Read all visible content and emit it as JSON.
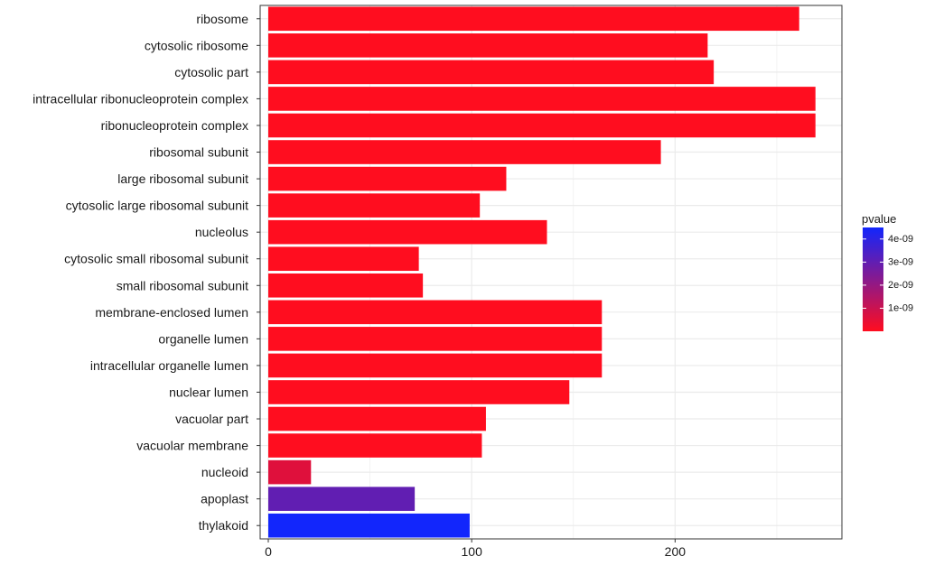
{
  "chart_data": {
    "type": "bar",
    "orientation": "horizontal",
    "categories": [
      "ribosome",
      "cytosolic ribosome",
      "cytosolic part",
      "intracellular ribonucleoprotein complex",
      "ribonucleoprotein complex",
      "ribosomal subunit",
      "large ribosomal subunit",
      "cytosolic large ribosomal subunit",
      "nucleolus",
      "cytosolic small ribosomal subunit",
      "small ribosomal subunit",
      "membrane-enclosed lumen",
      "organelle lumen",
      "intracellular organelle lumen",
      "nuclear lumen",
      "vacuolar part",
      "vacuolar membrane",
      "nucleoid",
      "apoplast",
      "thylakoid"
    ],
    "values": [
      261,
      216,
      219,
      269,
      269,
      193,
      117,
      104,
      137,
      74,
      76,
      164,
      164,
      164,
      148,
      107,
      105,
      21,
      72,
      99
    ],
    "pvalue": [
      1e-12,
      1e-12,
      1e-12,
      1e-12,
      1e-12,
      1e-12,
      1e-12,
      1e-12,
      1e-12,
      1e-12,
      1e-12,
      1e-12,
      1e-12,
      1e-12,
      1e-12,
      1e-12,
      1e-12,
      6e-10,
      3e-09,
      4.5e-09
    ],
    "title": "",
    "xlabel": "",
    "ylabel": "",
    "xlim": [
      -4,
      282
    ],
    "x_ticks": [
      0,
      100,
      200
    ],
    "x_tick_labels": [
      "0",
      "100",
      "200"
    ],
    "grid": true,
    "legend": {
      "title": "pvalue",
      "placement": "right",
      "type": "colorbar",
      "range": [
        1e-12,
        4.5e-09
      ],
      "ticks": [
        1e-09,
        2e-09,
        3e-09,
        4e-09
      ],
      "tick_labels": [
        "1e-09",
        "2e-09",
        "3e-09",
        "4e-09"
      ],
      "low_color": "#ff0d1f",
      "high_color": "#1226fc"
    },
    "colors": {
      "panel_background": "#ffffff",
      "grid": "#ebebeb",
      "panel_border": "#333333"
    }
  }
}
